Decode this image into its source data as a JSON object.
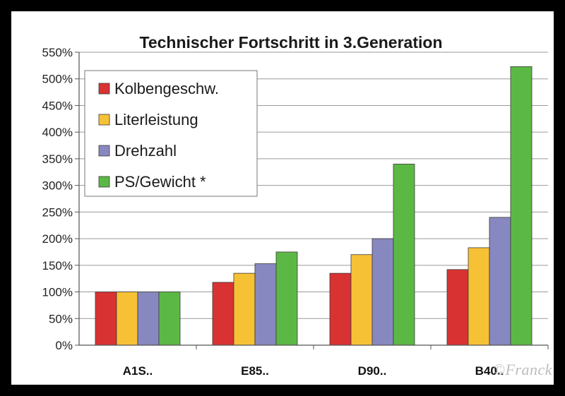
{
  "watermark": "©Franck",
  "chart_data": {
    "type": "bar",
    "title": "Technischer Fortschritt in 3.Generation",
    "xlabel": "",
    "ylabel": "",
    "categories": [
      "A1S..",
      "E85..",
      "D90..",
      "B40.."
    ],
    "ylim": [
      0,
      550
    ],
    "yticks": [
      0,
      50,
      100,
      150,
      200,
      250,
      300,
      350,
      400,
      450,
      500,
      550
    ],
    "ytick_suffix": "%",
    "grid": true,
    "legend_position": "top-left",
    "series": [
      {
        "name": "Kolbengeschw.",
        "color": "#d93232",
        "values": [
          100,
          118,
          135,
          142
        ]
      },
      {
        "name": "Literleistung",
        "color": "#f7c136",
        "values": [
          100,
          135,
          170,
          183
        ]
      },
      {
        "name": "Drehzahl",
        "color": "#8888c0",
        "values": [
          100,
          153,
          200,
          240
        ]
      },
      {
        "name": "PS/Gewicht *",
        "color": "#5cb845",
        "values": [
          100,
          175,
          340,
          523
        ]
      }
    ]
  }
}
